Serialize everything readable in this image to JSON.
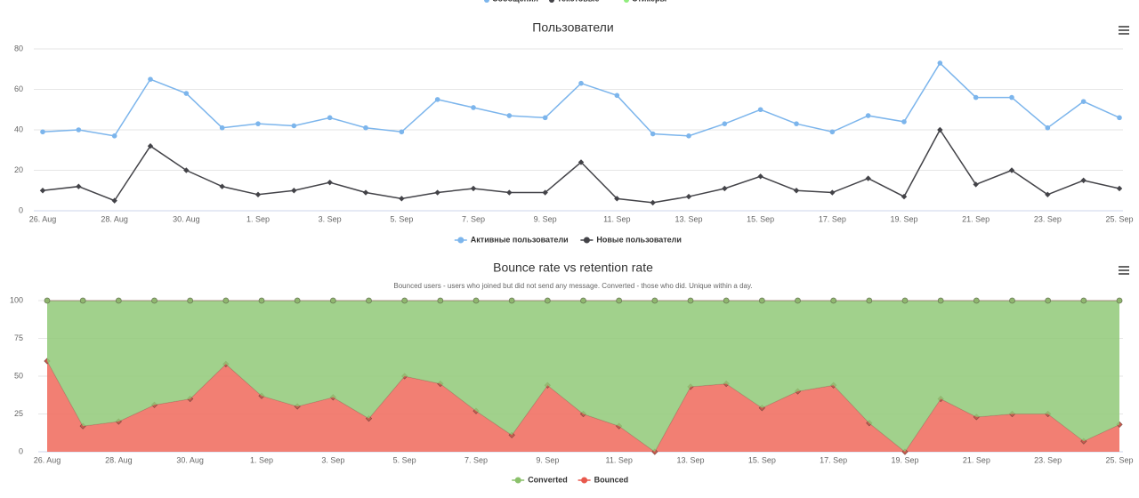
{
  "partial_legend": [
    {
      "name": "Сообщения",
      "color": "#7cb5ec"
    },
    {
      "name": "Текстовые",
      "color": "#434348"
    },
    {
      "name": "Стикеры",
      "color": "#90ed7d"
    }
  ],
  "chart_data": [
    {
      "type": "line",
      "title": "Пользователи",
      "categories": [
        "26. Aug",
        null,
        "28. Aug",
        null,
        "30. Aug",
        null,
        "1. Sep",
        null,
        "3. Sep",
        null,
        "5. Sep",
        null,
        "7. Sep",
        null,
        "9. Sep",
        null,
        "11. Sep",
        null,
        "13. Sep",
        null,
        "15. Sep",
        null,
        "17. Sep",
        null,
        "19. Sep",
        null,
        "21. Sep",
        null,
        "23. Sep",
        null,
        "25. Sep"
      ],
      "series": [
        {
          "name": "Активные пользователи",
          "color": "#7cb5ec",
          "values": [
            39,
            40,
            37,
            65,
            58,
            41,
            43,
            42,
            46,
            41,
            39,
            55,
            51,
            47,
            46,
            63,
            57,
            38,
            37,
            43,
            50,
            43,
            39,
            47,
            44,
            73,
            56,
            56,
            41,
            54,
            46
          ]
        },
        {
          "name": "Новые пользователи",
          "color": "#434348",
          "values": [
            10,
            12,
            5,
            32,
            20,
            12,
            8,
            10,
            14,
            9,
            6,
            9,
            11,
            9,
            9,
            24,
            6,
            4,
            7,
            11,
            17,
            10,
            9,
            16,
            7,
            40,
            13,
            20,
            8,
            15,
            11
          ]
        }
      ],
      "ylim": [
        0,
        80
      ],
      "yticks": [
        0,
        20,
        40,
        60,
        80
      ],
      "grid": true
    },
    {
      "type": "area",
      "stacked": true,
      "title": "Bounce rate vs retention rate",
      "subtitle": "Bounced users - users who joined but did not send any message. Converted - those who did. Unique within a day.",
      "categories": [
        "26. Aug",
        null,
        "28. Aug",
        null,
        "30. Aug",
        null,
        "1. Sep",
        null,
        "3. Sep",
        null,
        "5. Sep",
        null,
        "7. Sep",
        null,
        "9. Sep",
        null,
        "11. Sep",
        null,
        "13. Sep",
        null,
        "15. Sep",
        null,
        "17. Sep",
        null,
        "19. Sep",
        null,
        "21. Sep",
        null,
        "23. Sep",
        null,
        "25. Sep"
      ],
      "series": [
        {
          "name": "Converted",
          "color": "#90c978",
          "values": [
            40,
            83,
            80,
            69,
            65,
            42,
            63,
            70,
            64,
            78,
            50,
            55,
            73,
            89,
            56,
            75,
            83,
            100,
            57,
            55,
            71,
            60,
            56,
            81,
            100,
            65,
            77,
            75,
            75,
            93,
            82
          ]
        },
        {
          "name": "Bounced",
          "color": "#f0685a",
          "values": [
            60,
            17,
            20,
            31,
            35,
            58,
            37,
            30,
            36,
            22,
            50,
            45,
            27,
            11,
            44,
            25,
            17,
            0,
            43,
            45,
            29,
            40,
            44,
            19,
            0,
            35,
            23,
            25,
            25,
            7,
            18
          ]
        }
      ],
      "ylim": [
        0,
        100
      ],
      "yticks": [
        0,
        25,
        50,
        75,
        100
      ],
      "grid": true
    }
  ]
}
